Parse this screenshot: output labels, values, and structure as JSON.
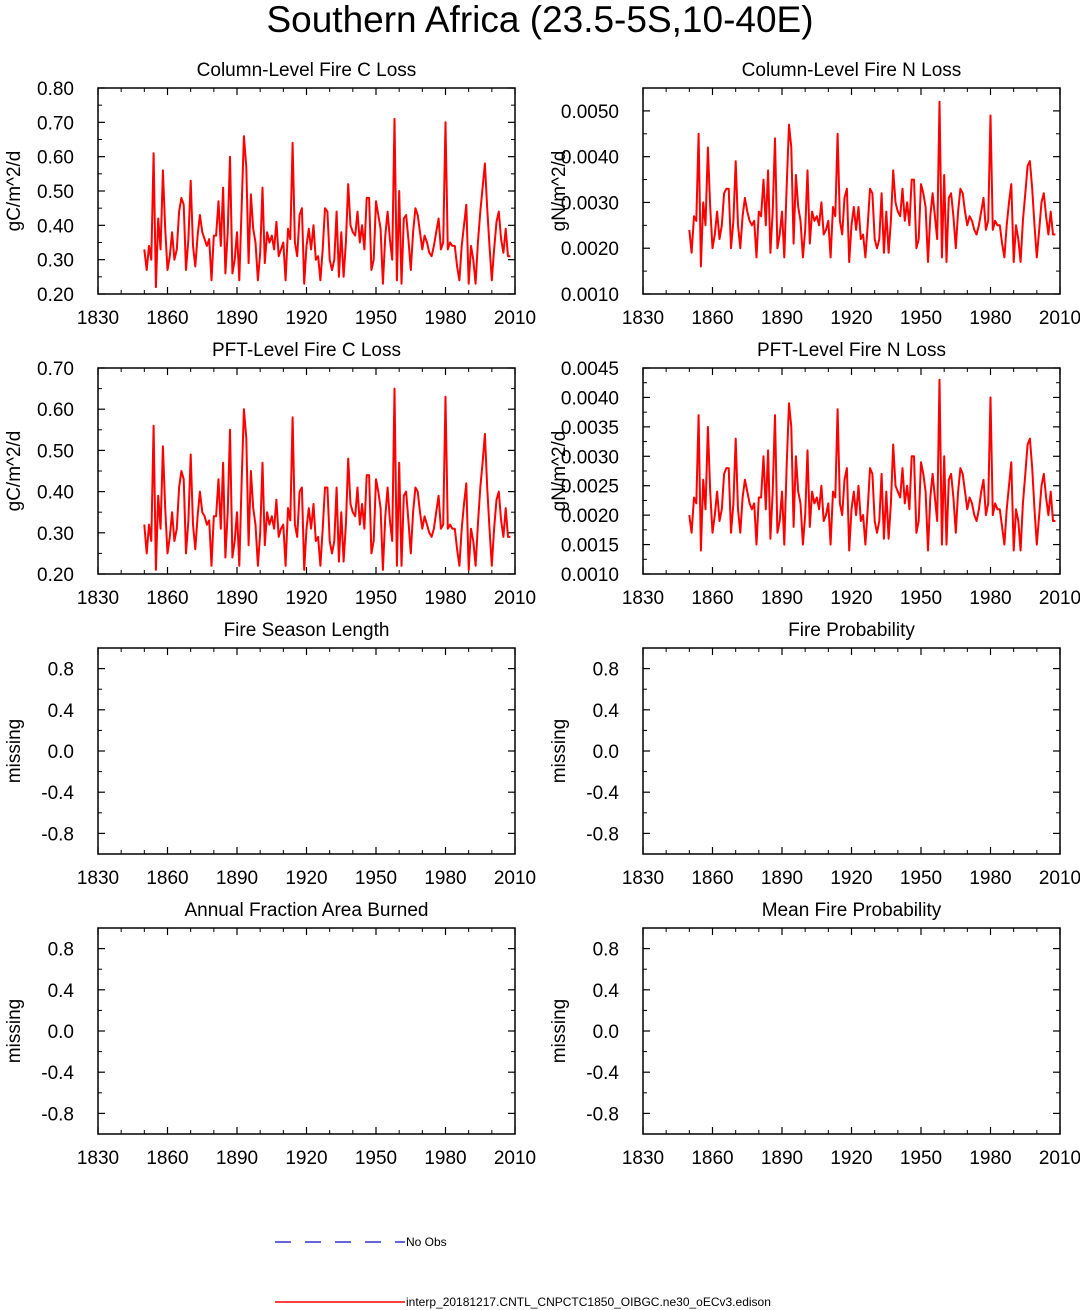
{
  "title": "Southern Africa (23.5-5S,10-40E)",
  "colors": {
    "model": "#ff0000",
    "obs": "#3333cc",
    "axis": "#000000"
  },
  "legend": {
    "obs_label": "No Obs",
    "model_label": "interp_20181217.CNTL_CNPCTC1850_OIBGC.ne30_oECv3.edison"
  },
  "chart_data": [
    {
      "id": "col-c",
      "type": "line",
      "title": "Column-Level Fire C Loss",
      "ylabel": "gC/m^2/d",
      "xlim": [
        1830,
        2010
      ],
      "ylim": [
        0.2,
        0.8
      ],
      "xticks": [
        1830,
        1860,
        1890,
        1920,
        1950,
        1980,
        2010
      ],
      "yticks": [
        "0.20",
        "0.30",
        "0.40",
        "0.50",
        "0.60",
        "0.70",
        "0.80"
      ],
      "series": [
        {
          "name": "interp_20181217.CNTL_CNPCTC1850_OIBGC.ne30_oECv3.edison",
          "x_start": 1850,
          "values": [
            0.33,
            0.27,
            0.34,
            0.3,
            0.61,
            0.22,
            0.42,
            0.33,
            0.56,
            0.39,
            0.27,
            0.31,
            0.38,
            0.3,
            0.33,
            0.44,
            0.48,
            0.46,
            0.27,
            0.36,
            0.53,
            0.34,
            0.28,
            0.37,
            0.43,
            0.38,
            0.36,
            0.34,
            0.36,
            0.24,
            0.37,
            0.37,
            0.47,
            0.34,
            0.51,
            0.26,
            0.38,
            0.6,
            0.26,
            0.3,
            0.38,
            0.24,
            0.45,
            0.66,
            0.57,
            0.29,
            0.49,
            0.39,
            0.35,
            0.24,
            0.32,
            0.51,
            0.29,
            0.38,
            0.35,
            0.37,
            0.33,
            0.41,
            0.31,
            0.33,
            0.35,
            0.24,
            0.39,
            0.36,
            0.64,
            0.35,
            0.31,
            0.43,
            0.45,
            0.23,
            0.34,
            0.39,
            0.33,
            0.4,
            0.3,
            0.31,
            0.24,
            0.33,
            0.45,
            0.44,
            0.3,
            0.27,
            0.3,
            0.44,
            0.25,
            0.38,
            0.25,
            0.35,
            0.52,
            0.4,
            0.38,
            0.37,
            0.44,
            0.35,
            0.4,
            0.33,
            0.48,
            0.48,
            0.27,
            0.3,
            0.47,
            0.43,
            0.39,
            0.23,
            0.37,
            0.44,
            0.36,
            0.3,
            0.71,
            0.24,
            0.5,
            0.23,
            0.42,
            0.43,
            0.36,
            0.27,
            0.38,
            0.45,
            0.43,
            0.38,
            0.33,
            0.37,
            0.35,
            0.32,
            0.31,
            0.34,
            0.38,
            0.42,
            0.33,
            0.35,
            0.7,
            0.33,
            0.35,
            0.34,
            0.34,
            0.28,
            0.24,
            0.34,
            0.4,
            0.46,
            0.23,
            0.34,
            0.3,
            0.23,
            0.35,
            0.44,
            0.51,
            0.58,
            0.45,
            0.34,
            0.24,
            0.33,
            0.41,
            0.44,
            0.36,
            0.32,
            0.39,
            0.31,
            0.31
          ]
        }
      ]
    },
    {
      "id": "col-n",
      "type": "line",
      "title": "Column-Level Fire N Loss",
      "ylabel": "gN/m^2/d",
      "xlim": [
        1830,
        2010
      ],
      "ylim": [
        0.001,
        0.0055
      ],
      "xticks": [
        1830,
        1860,
        1890,
        1920,
        1950,
        1980,
        2010
      ],
      "yticks": [
        "0.0010",
        "0.0020",
        "0.0030",
        "0.0040",
        "0.0050"
      ],
      "series": [
        {
          "name": "interp_20181217.CNTL_CNPCTC1850_OIBGC.ne30_oECv3.edison",
          "x_start": 1850,
          "values": [
            0.0024,
            0.0019,
            0.0027,
            0.0026,
            0.0045,
            0.0016,
            0.003,
            0.0025,
            0.0042,
            0.0029,
            0.002,
            0.0023,
            0.0028,
            0.0022,
            0.0025,
            0.0032,
            0.0033,
            0.0033,
            0.002,
            0.0026,
            0.0039,
            0.0025,
            0.002,
            0.0027,
            0.0031,
            0.0028,
            0.0026,
            0.0025,
            0.0026,
            0.0018,
            0.0028,
            0.0027,
            0.0035,
            0.0025,
            0.0037,
            0.0019,
            0.0028,
            0.0044,
            0.002,
            0.0023,
            0.0028,
            0.0018,
            0.0033,
            0.0047,
            0.0042,
            0.0021,
            0.0036,
            0.0029,
            0.0026,
            0.0018,
            0.0024,
            0.0037,
            0.0021,
            0.0028,
            0.0026,
            0.0027,
            0.0025,
            0.003,
            0.0023,
            0.0024,
            0.0026,
            0.0018,
            0.0029,
            0.0027,
            0.0045,
            0.0026,
            0.0023,
            0.0031,
            0.0033,
            0.0017,
            0.0025,
            0.0029,
            0.0024,
            0.0029,
            0.0022,
            0.0023,
            0.0018,
            0.0025,
            0.0033,
            0.0032,
            0.0022,
            0.002,
            0.0022,
            0.0032,
            0.0019,
            0.0028,
            0.0019,
            0.0026,
            0.0037,
            0.003,
            0.0028,
            0.0027,
            0.0033,
            0.0026,
            0.003,
            0.0025,
            0.0035,
            0.0035,
            0.002,
            0.0022,
            0.0034,
            0.0032,
            0.0029,
            0.0017,
            0.0027,
            0.0032,
            0.0027,
            0.0022,
            0.0052,
            0.0018,
            0.0036,
            0.0017,
            0.0031,
            0.0032,
            0.0027,
            0.002,
            0.0028,
            0.0033,
            0.0032,
            0.0028,
            0.0025,
            0.0027,
            0.0026,
            0.0024,
            0.0023,
            0.0025,
            0.0028,
            0.0031,
            0.0024,
            0.0026,
            0.0049,
            0.0024,
            0.0026,
            0.0025,
            0.0025,
            0.0021,
            0.0018,
            0.0025,
            0.003,
            0.0034,
            0.0017,
            0.0025,
            0.0022,
            0.0017,
            0.0026,
            0.0032,
            0.0038,
            0.0039,
            0.0033,
            0.0025,
            0.0018,
            0.0024,
            0.003,
            0.0032,
            0.0027,
            0.0023,
            0.0028,
            0.0023,
            0.0023
          ]
        }
      ]
    },
    {
      "id": "pft-c",
      "type": "line",
      "title": "PFT-Level Fire C Loss",
      "ylabel": "gC/m^2/d",
      "xlim": [
        1830,
        2010
      ],
      "ylim": [
        0.2,
        0.7
      ],
      "xticks": [
        1830,
        1860,
        1890,
        1920,
        1950,
        1980,
        2010
      ],
      "yticks": [
        "0.20",
        "0.30",
        "0.40",
        "0.50",
        "0.60",
        "0.70"
      ],
      "series": [
        {
          "name": "interp_20181217.CNTL_CNPCTC1850_OIBGC.ne30_oECv3.edison",
          "x_start": 1850,
          "values": [
            0.32,
            0.25,
            0.32,
            0.28,
            0.56,
            0.21,
            0.39,
            0.31,
            0.51,
            0.36,
            0.25,
            0.29,
            0.35,
            0.28,
            0.31,
            0.41,
            0.45,
            0.43,
            0.25,
            0.33,
            0.49,
            0.32,
            0.26,
            0.34,
            0.4,
            0.35,
            0.34,
            0.32,
            0.33,
            0.22,
            0.34,
            0.34,
            0.43,
            0.31,
            0.47,
            0.24,
            0.35,
            0.55,
            0.24,
            0.28,
            0.35,
            0.22,
            0.42,
            0.6,
            0.53,
            0.27,
            0.45,
            0.36,
            0.32,
            0.22,
            0.3,
            0.47,
            0.27,
            0.35,
            0.32,
            0.34,
            0.31,
            0.38,
            0.29,
            0.31,
            0.32,
            0.22,
            0.36,
            0.33,
            0.58,
            0.32,
            0.29,
            0.4,
            0.41,
            0.21,
            0.31,
            0.36,
            0.31,
            0.37,
            0.28,
            0.29,
            0.22,
            0.31,
            0.41,
            0.41,
            0.28,
            0.25,
            0.28,
            0.41,
            0.23,
            0.35,
            0.23,
            0.32,
            0.48,
            0.37,
            0.35,
            0.34,
            0.41,
            0.32,
            0.37,
            0.31,
            0.44,
            0.44,
            0.25,
            0.28,
            0.43,
            0.4,
            0.36,
            0.21,
            0.34,
            0.41,
            0.33,
            0.28,
            0.65,
            0.22,
            0.47,
            0.22,
            0.39,
            0.4,
            0.33,
            0.25,
            0.35,
            0.41,
            0.4,
            0.35,
            0.31,
            0.34,
            0.32,
            0.3,
            0.29,
            0.31,
            0.35,
            0.39,
            0.31,
            0.32,
            0.63,
            0.31,
            0.32,
            0.31,
            0.31,
            0.26,
            0.22,
            0.31,
            0.37,
            0.42,
            0.21,
            0.31,
            0.28,
            0.22,
            0.32,
            0.41,
            0.47,
            0.54,
            0.41,
            0.31,
            0.22,
            0.31,
            0.38,
            0.4,
            0.33,
            0.29,
            0.36,
            0.29,
            0.29
          ]
        }
      ]
    },
    {
      "id": "pft-n",
      "type": "line",
      "title": "PFT-Level Fire N Loss",
      "ylabel": "gN/m^2/d",
      "xlim": [
        1830,
        2010
      ],
      "ylim": [
        0.001,
        0.0045
      ],
      "xticks": [
        1830,
        1860,
        1890,
        1920,
        1950,
        1980,
        2010
      ],
      "yticks": [
        "0.0010",
        "0.0015",
        "0.0020",
        "0.0025",
        "0.0030",
        "0.0035",
        "0.0040",
        "0.0045"
      ],
      "series": [
        {
          "name": "interp_20181217.CNTL_CNPCTC1850_OIBGC.ne30_oECv3.edison",
          "x_start": 1850,
          "values": [
            0.002,
            0.0017,
            0.0023,
            0.0022,
            0.0037,
            0.0014,
            0.0026,
            0.0021,
            0.0035,
            0.0024,
            0.0017,
            0.002,
            0.0024,
            0.0019,
            0.0021,
            0.0027,
            0.0028,
            0.0028,
            0.0017,
            0.0022,
            0.0033,
            0.0021,
            0.0017,
            0.0023,
            0.0026,
            0.0024,
            0.0022,
            0.0021,
            0.0022,
            0.0015,
            0.0023,
            0.0023,
            0.003,
            0.0021,
            0.0031,
            0.0016,
            0.0024,
            0.0037,
            0.0017,
            0.0019,
            0.0024,
            0.0015,
            0.0028,
            0.0039,
            0.0035,
            0.0018,
            0.003,
            0.0024,
            0.0022,
            0.0015,
            0.002,
            0.0031,
            0.0018,
            0.0024,
            0.0022,
            0.0023,
            0.0021,
            0.0025,
            0.0019,
            0.002,
            0.0022,
            0.0015,
            0.0024,
            0.0023,
            0.0038,
            0.0022,
            0.002,
            0.0026,
            0.0028,
            0.0014,
            0.0021,
            0.0024,
            0.002,
            0.0025,
            0.0019,
            0.002,
            0.0015,
            0.0021,
            0.0028,
            0.0027,
            0.0019,
            0.0017,
            0.0019,
            0.0027,
            0.0016,
            0.0024,
            0.0016,
            0.0022,
            0.0032,
            0.0025,
            0.0024,
            0.0023,
            0.0028,
            0.0022,
            0.0025,
            0.0021,
            0.003,
            0.003,
            0.0017,
            0.0019,
            0.0029,
            0.0027,
            0.0024,
            0.0014,
            0.0023,
            0.0027,
            0.0023,
            0.0019,
            0.0043,
            0.0015,
            0.003,
            0.0015,
            0.0026,
            0.0027,
            0.0023,
            0.0017,
            0.0024,
            0.0028,
            0.0027,
            0.0024,
            0.0021,
            0.0023,
            0.0022,
            0.002,
            0.0019,
            0.0021,
            0.0024,
            0.0026,
            0.002,
            0.0022,
            0.004,
            0.002,
            0.0022,
            0.0021,
            0.0021,
            0.0018,
            0.0015,
            0.0021,
            0.0025,
            0.0029,
            0.0014,
            0.0021,
            0.0019,
            0.0014,
            0.0022,
            0.0027,
            0.0032,
            0.0033,
            0.0028,
            0.0021,
            0.0015,
            0.002,
            0.0025,
            0.0027,
            0.0023,
            0.002,
            0.0024,
            0.0019,
            0.0019
          ]
        }
      ]
    },
    {
      "id": "fire-season",
      "type": "line",
      "title": "Fire Season Length",
      "ylabel": "missing",
      "xlim": [
        1830,
        2010
      ],
      "ylim": [
        -1.0,
        1.0
      ],
      "xticks": [
        1830,
        1860,
        1890,
        1920,
        1950,
        1980,
        2010
      ],
      "yticks": [
        "-0.8",
        "-0.4",
        "0.0",
        "0.4",
        "0.8"
      ],
      "series": []
    },
    {
      "id": "fire-prob",
      "type": "line",
      "title": "Fire Probability",
      "ylabel": "missing",
      "xlim": [
        1830,
        2010
      ],
      "ylim": [
        -1.0,
        1.0
      ],
      "xticks": [
        1830,
        1860,
        1890,
        1920,
        1950,
        1980,
        2010
      ],
      "yticks": [
        "-0.8",
        "-0.4",
        "0.0",
        "0.4",
        "0.8"
      ],
      "series": []
    },
    {
      "id": "area-burned",
      "type": "line",
      "title": "Annual Fraction Area Burned",
      "ylabel": "missing",
      "xlim": [
        1830,
        2010
      ],
      "ylim": [
        -1.0,
        1.0
      ],
      "xticks": [
        1830,
        1860,
        1890,
        1920,
        1950,
        1980,
        2010
      ],
      "yticks": [
        "-0.8",
        "-0.4",
        "0.0",
        "0.4",
        "0.8"
      ],
      "series": []
    },
    {
      "id": "mean-fire-prob",
      "type": "line",
      "title": "Mean Fire Probability",
      "ylabel": "missing",
      "xlim": [
        1830,
        2010
      ],
      "ylim": [
        -1.0,
        1.0
      ],
      "xticks": [
        1830,
        1860,
        1890,
        1920,
        1950,
        1980,
        2010
      ],
      "yticks": [
        "-0.8",
        "-0.4",
        "0.0",
        "0.4",
        "0.8"
      ],
      "series": []
    }
  ]
}
